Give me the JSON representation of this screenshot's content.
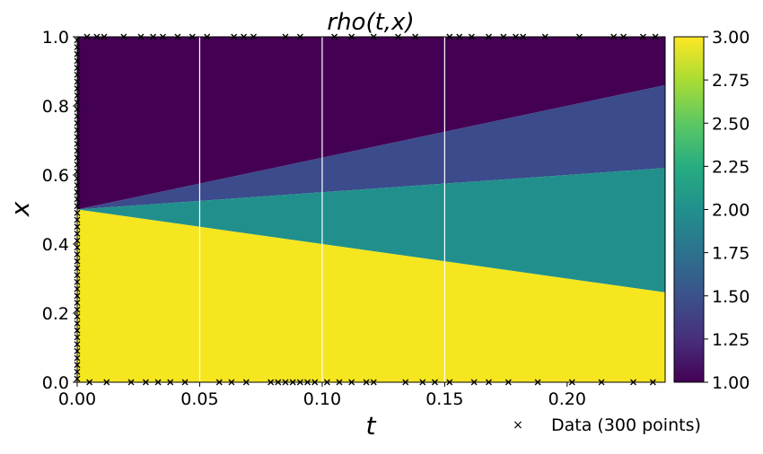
{
  "chart_data": {
    "type": "heatmap",
    "title": "rho(t,x)",
    "xlabel": "t",
    "ylabel": "x",
    "xlim": [
      0,
      0.24
    ],
    "ylim": [
      0,
      1
    ],
    "x_ticks": [
      "0.00",
      "0.05",
      "0.10",
      "0.15",
      "0.20"
    ],
    "y_ticks": [
      "0.0",
      "0.2",
      "0.4",
      "0.6",
      "0.8",
      "1.0"
    ],
    "colorbar": {
      "colormap": "viridis",
      "range": [
        1.0,
        3.0
      ],
      "ticks": [
        "1.00",
        "1.25",
        "1.50",
        "1.75",
        "2.00",
        "2.25",
        "2.50",
        "2.75",
        "3.00"
      ]
    },
    "field_regions": [
      {
        "value": 1.0,
        "description": "upper region above fan"
      },
      {
        "value": 1.5,
        "bounded_by_x": "0.5 + 1.5*t (top) and 0.5 + 0.5*t (bottom)"
      },
      {
        "value": 2.0,
        "bounded_by_x": "0.5 + 0.5*t (top) and 0.5 - 1.0*t (bottom)"
      },
      {
        "value": 3.0,
        "description": "lower region below fan"
      }
    ],
    "vertical_lines_t": [
      0.05,
      0.1,
      0.15
    ],
    "data_points": {
      "legend_label": "Data (300 points)",
      "marker": "x",
      "color": "#000000",
      "bottom_t": [
        0.005,
        0.012,
        0.022,
        0.028,
        0.033,
        0.038,
        0.044,
        0.058,
        0.063,
        0.069,
        0.079,
        0.082,
        0.085,
        0.088,
        0.091,
        0.094,
        0.097,
        0.102,
        0.107,
        0.112,
        0.118,
        0.121,
        0.134,
        0.141,
        0.146,
        0.152,
        0.162,
        0.168,
        0.176,
        0.188,
        0.202,
        0.214,
        0.227,
        0.235
      ],
      "top_t": [
        0.004,
        0.008,
        0.011,
        0.019,
        0.026,
        0.031,
        0.035,
        0.041,
        0.047,
        0.053,
        0.064,
        0.068,
        0.072,
        0.085,
        0.091,
        0.105,
        0.112,
        0.121,
        0.131,
        0.138,
        0.152,
        0.156,
        0.161,
        0.168,
        0.174,
        0.179,
        0.182,
        0.191,
        0.205,
        0.219,
        0.223,
        0.231,
        0.236
      ],
      "left_x": [
        0.01,
        0.03,
        0.05,
        0.07,
        0.09,
        0.11,
        0.13,
        0.15,
        0.17,
        0.19,
        0.21,
        0.23,
        0.25,
        0.27,
        0.29,
        0.31,
        0.33,
        0.35,
        0.37,
        0.39,
        0.41,
        0.43,
        0.45,
        0.47,
        0.49,
        0.51,
        0.53,
        0.55,
        0.57,
        0.59,
        0.61,
        0.63,
        0.65,
        0.67,
        0.69,
        0.71,
        0.73,
        0.75,
        0.77,
        0.79,
        0.81,
        0.83,
        0.85,
        0.87,
        0.89,
        0.91,
        0.93,
        0.95,
        0.97,
        0.99
      ]
    },
    "colors": {
      "rho_1": "#440154",
      "rho_1_5": "#3b4b8c",
      "rho_2": "#21908d",
      "rho_3": "#f5e61f",
      "gridline": "#ffffff"
    }
  }
}
